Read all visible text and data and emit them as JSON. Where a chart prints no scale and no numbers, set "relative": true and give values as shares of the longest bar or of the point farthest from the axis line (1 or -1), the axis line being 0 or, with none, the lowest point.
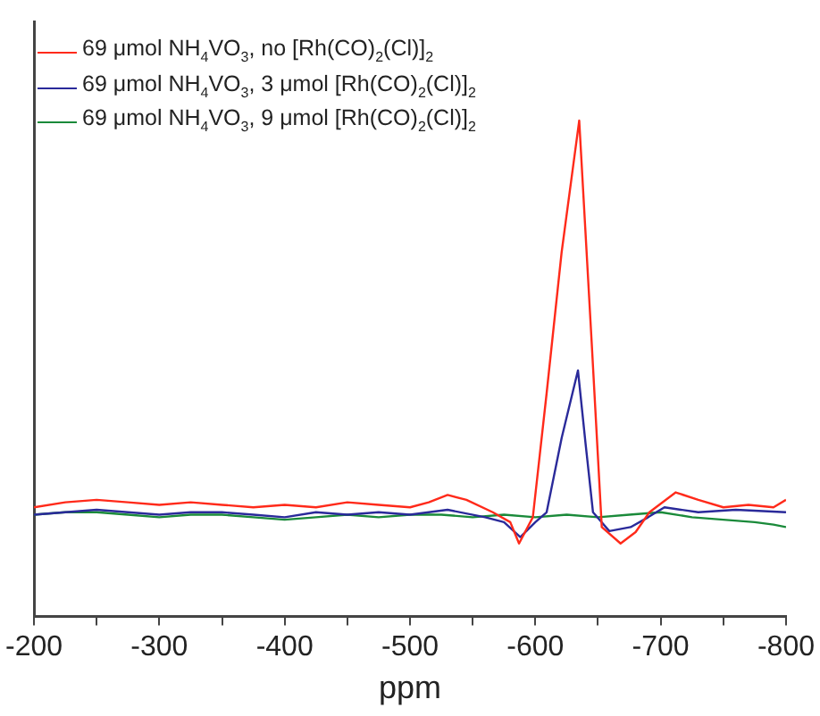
{
  "chart_data": {
    "type": "line",
    "relative": true,
    "xlabel": "ppm",
    "xlim": [
      -200,
      -800
    ],
    "xticks": [
      -200,
      {
        "value": -250,
        "label": null
      },
      -300,
      {
        "value": -350,
        "label": null
      },
      -400,
      {
        "value": -450,
        "label": null
      },
      -500,
      {
        "value": -550,
        "label": null
      },
      -600,
      {
        "value": -650,
        "label": null
      },
      -700,
      {
        "value": -750,
        "label": null
      },
      -800
    ],
    "grid": false,
    "legend": "top left",
    "marker": "none",
    "line_style": "solid",
    "series": [
      {
        "name": "69 μmol NH$_{4}$VO$_{3}$, no [Rh(CO)$_{2}$(Cl)]$_{2}$",
        "color": "#ff2a1a",
        "x": [
          -200,
          -225,
          -250,
          -275,
          -300,
          -325,
          -350,
          -375,
          -400,
          -425,
          -450,
          -475,
          -500,
          -515,
          -530,
          -545,
          -566,
          -580,
          -587,
          -598,
          -609,
          -621,
          -635,
          -645,
          -653,
          -668,
          -680,
          -691,
          -712,
          -730,
          -750,
          -770,
          -790,
          -800
        ],
        "values": [
          0.22,
          0.23,
          0.235,
          0.23,
          0.225,
          0.23,
          0.225,
          0.22,
          0.225,
          0.22,
          0.23,
          0.225,
          0.22,
          0.23,
          0.245,
          0.235,
          0.21,
          0.19,
          0.147,
          0.2,
          0.45,
          0.735,
          1.0,
          0.55,
          0.18,
          0.147,
          0.17,
          0.21,
          0.25,
          0.235,
          0.22,
          0.225,
          0.22,
          0.235
        ]
      },
      {
        "name": "69 μmol NH$_{4}$VO$_{3}$, 3 μmol [Rh(CO)$_{2}$(Cl)]$_{2}$",
        "color": "#2a2a9a",
        "x": [
          -200,
          -225,
          -250,
          -275,
          -300,
          -325,
          -350,
          -375,
          -400,
          -425,
          -450,
          -475,
          -500,
          -530,
          -560,
          -575,
          -588,
          -600,
          -609,
          -621,
          -634,
          -640,
          -646,
          -659,
          -676,
          -690,
          -703,
          -730,
          -760,
          -800
        ],
        "values": [
          0.205,
          0.21,
          0.215,
          0.21,
          0.205,
          0.21,
          0.21,
          0.205,
          0.2,
          0.21,
          0.205,
          0.21,
          0.205,
          0.215,
          0.2,
          0.19,
          0.16,
          0.19,
          0.21,
          0.36,
          0.496,
          0.35,
          0.21,
          0.172,
          0.18,
          0.2,
          0.22,
          0.21,
          0.215,
          0.21
        ]
      },
      {
        "name": "69 μmol NH$_{4}$VO$_{3}$, 9 μmol [Rh(CO)$_{2}$(Cl)]$_{2}$",
        "color": "#1a8a3a",
        "x": [
          -200,
          -225,
          -250,
          -275,
          -300,
          -325,
          -350,
          -375,
          -400,
          -425,
          -450,
          -475,
          -500,
          -525,
          -550,
          -575,
          -600,
          -625,
          -650,
          -675,
          -700,
          -725,
          -750,
          -775,
          -790,
          -800
        ],
        "values": [
          0.205,
          0.21,
          0.21,
          0.205,
          0.2,
          0.205,
          0.205,
          0.2,
          0.195,
          0.2,
          0.205,
          0.2,
          0.205,
          0.205,
          0.2,
          0.205,
          0.2,
          0.205,
          0.2,
          0.205,
          0.21,
          0.2,
          0.195,
          0.19,
          0.185,
          0.18
        ]
      }
    ]
  }
}
